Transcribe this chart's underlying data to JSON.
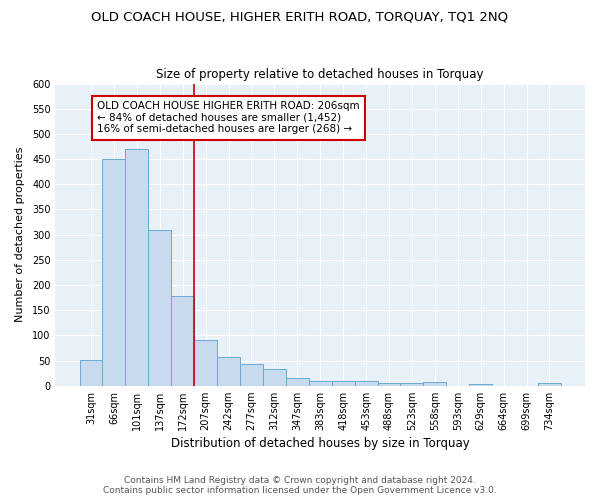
{
  "title": "OLD COACH HOUSE, HIGHER ERITH ROAD, TORQUAY, TQ1 2NQ",
  "subtitle": "Size of property relative to detached houses in Torquay",
  "xlabel": "Distribution of detached houses by size in Torquay",
  "ylabel": "Number of detached properties",
  "categories": [
    "31sqm",
    "66sqm",
    "101sqm",
    "137sqm",
    "172sqm",
    "207sqm",
    "242sqm",
    "277sqm",
    "312sqm",
    "347sqm",
    "383sqm",
    "418sqm",
    "453sqm",
    "488sqm",
    "523sqm",
    "558sqm",
    "593sqm",
    "629sqm",
    "664sqm",
    "699sqm",
    "734sqm"
  ],
  "values": [
    52,
    450,
    470,
    310,
    178,
    90,
    57,
    43,
    33,
    16,
    10,
    10,
    10,
    6,
    6,
    8,
    0,
    4,
    0,
    0,
    5
  ],
  "bar_color": "#c8daee",
  "bar_edge_color": "#6aaad4",
  "red_line_x": 4.5,
  "annotation_title": "OLD COACH HOUSE HIGHER ERITH ROAD: 206sqm",
  "annotation_line1": "← 84% of detached houses are smaller (1,452)",
  "annotation_line2": "16% of semi-detached houses are larger (268) →",
  "annotation_box_facecolor": "#ffffff",
  "annotation_box_edgecolor": "#cc0000",
  "ylim": [
    0,
    600
  ],
  "yticks": [
    0,
    50,
    100,
    150,
    200,
    250,
    300,
    350,
    400,
    450,
    500,
    550,
    600
  ],
  "figure_facecolor": "#ffffff",
  "plot_facecolor": "#e8f0f8",
  "grid_color": "#ffffff",
  "title_fontsize": 9.5,
  "subtitle_fontsize": 8.5,
  "xlabel_fontsize": 8.5,
  "ylabel_fontsize": 8,
  "tick_fontsize": 7,
  "annotation_fontsize": 7.5,
  "footer_fontsize": 6.5,
  "footer1": "Contains HM Land Registry data © Crown copyright and database right 2024.",
  "footer2": "Contains public sector information licensed under the Open Government Licence v3.0."
}
